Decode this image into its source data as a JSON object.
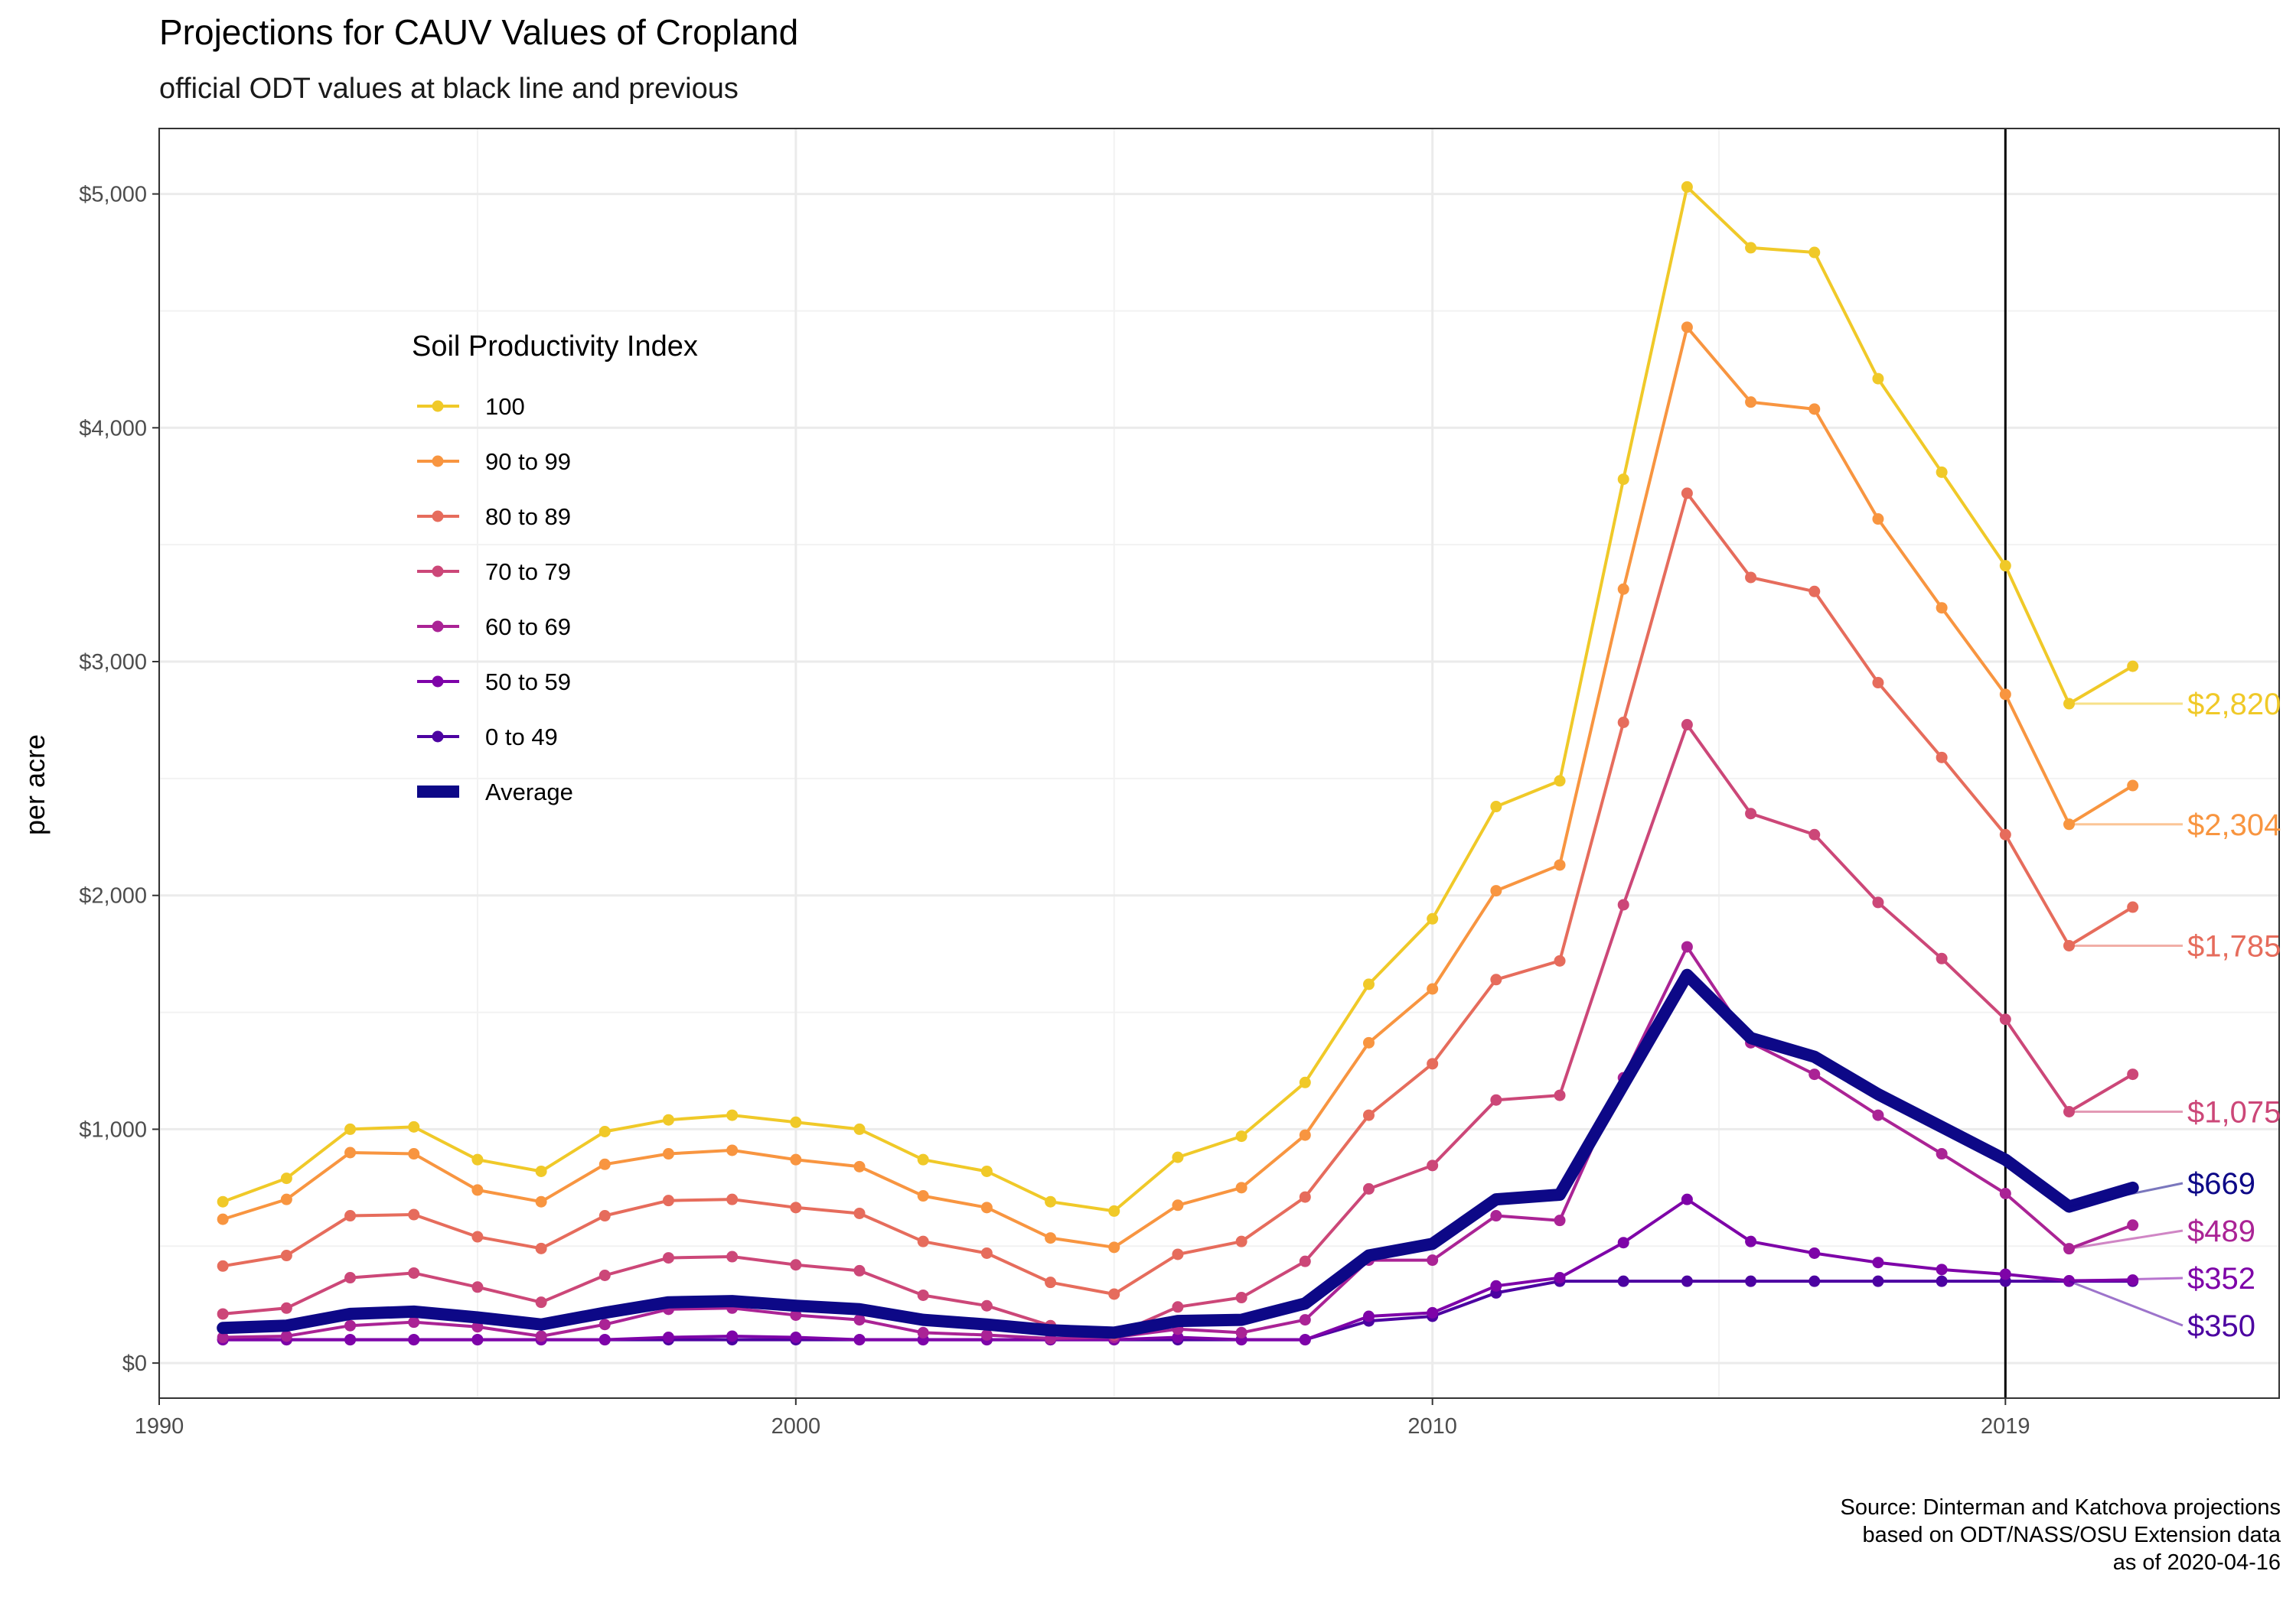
{
  "chart_data": {
    "type": "line",
    "title": "Projections for CAUV Values of Cropland",
    "subtitle": "official ODT values at black line and previous",
    "ylabel": "per acre",
    "xlabel": "",
    "caption": [
      "Source: Dinterman and Katchova projections",
      "based on ODT/NASS/OSU Extension data",
      "as of 2020-04-16"
    ],
    "xlim": [
      1990,
      2023.3
    ],
    "ylim": [
      -150,
      5280
    ],
    "x_ticks": [
      1990,
      2000,
      2010,
      2019
    ],
    "x_tick_labels": [
      "1990",
      "2000",
      "2010",
      "2019"
    ],
    "y_ticks": [
      0,
      1000,
      2000,
      3000,
      4000,
      5000
    ],
    "y_tick_labels": [
      "$0",
      "$1,000",
      "$2,000",
      "$3,000",
      "$4,000",
      "$5,000"
    ],
    "grid": true,
    "reference_line_x": 2019,
    "legend": {
      "title": "Soil Productivity Index",
      "position": "top-left inside"
    },
    "x": [
      1991,
      1992,
      1993,
      1994,
      1995,
      1996,
      1997,
      1998,
      1999,
      2000,
      2001,
      2002,
      2003,
      2004,
      2005,
      2006,
      2007,
      2008,
      2009,
      2010,
      2011,
      2012,
      2013,
      2014,
      2015,
      2016,
      2017,
      2018,
      2019,
      2020,
      2021
    ],
    "series": [
      {
        "name": "100",
        "color": "#F0C928",
        "bold": false,
        "values": [
          690,
          790,
          1000,
          1010,
          870,
          820,
          990,
          1040,
          1060,
          1030,
          1000,
          870,
          820,
          690,
          650,
          880,
          970,
          1200,
          1620,
          1900,
          2380,
          2490,
          3780,
          5030,
          4770,
          4750,
          4210,
          3810,
          3410,
          2820,
          2980
        ],
        "end_label": "$2,820"
      },
      {
        "name": "90 to 99",
        "color": "#F89540",
        "bold": false,
        "values": [
          615,
          700,
          900,
          895,
          740,
          690,
          850,
          895,
          910,
          870,
          840,
          715,
          665,
          535,
          495,
          675,
          750,
          975,
          1370,
          1600,
          2020,
          2130,
          3310,
          4430,
          4110,
          4080,
          3610,
          3230,
          2860,
          2304,
          2470
        ],
        "end_label": "$2,304"
      },
      {
        "name": "80 to 89",
        "color": "#E66C5C",
        "bold": false,
        "values": [
          415,
          460,
          630,
          635,
          540,
          490,
          630,
          695,
          700,
          665,
          640,
          520,
          470,
          345,
          295,
          465,
          520,
          710,
          1060,
          1280,
          1640,
          1720,
          2740,
          3720,
          3360,
          3300,
          2910,
          2590,
          2260,
          1785,
          1950
        ],
        "end_label": "$1,785"
      },
      {
        "name": "70 to 79",
        "color": "#CC4778",
        "bold": false,
        "values": [
          210,
          235,
          365,
          385,
          325,
          260,
          375,
          450,
          455,
          420,
          395,
          290,
          245,
          160,
          120,
          240,
          280,
          435,
          745,
          845,
          1125,
          1145,
          1960,
          2730,
          2350,
          2260,
          1970,
          1730,
          1470,
          1075,
          1235
        ],
        "end_label": "$1,075"
      },
      {
        "name": "60 to 69",
        "color": "#AA2395",
        "bold": false,
        "values": [
          110,
          115,
          160,
          175,
          155,
          115,
          165,
          230,
          235,
          205,
          185,
          130,
          120,
          105,
          110,
          145,
          130,
          185,
          440,
          440,
          630,
          610,
          1220,
          1780,
          1370,
          1235,
          1060,
          895,
          725,
          489,
          590
        ],
        "end_label": "$489"
      },
      {
        "name": "50 to 59",
        "color": "#7E03A8",
        "bold": false,
        "values": [
          100,
          100,
          100,
          100,
          100,
          100,
          100,
          110,
          115,
          110,
          100,
          100,
          100,
          100,
          100,
          110,
          100,
          100,
          200,
          215,
          330,
          365,
          515,
          700,
          520,
          470,
          430,
          400,
          380,
          352,
          355
        ],
        "end_label": "$352"
      },
      {
        "name": "0 to 49",
        "color": "#4C02A1",
        "bold": false,
        "values": [
          100,
          100,
          100,
          100,
          100,
          100,
          100,
          100,
          100,
          100,
          100,
          100,
          100,
          100,
          100,
          100,
          100,
          100,
          180,
          200,
          300,
          350,
          350,
          350,
          350,
          350,
          350,
          350,
          350,
          350,
          350
        ],
        "end_label": "$350"
      },
      {
        "name": "Average",
        "color": "#0D0887",
        "bold": true,
        "values": [
          150,
          160,
          210,
          220,
          195,
          165,
          215,
          260,
          265,
          245,
          230,
          185,
          165,
          140,
          130,
          180,
          185,
          255,
          460,
          510,
          700,
          720,
          1190,
          1660,
          1390,
          1310,
          1150,
          1010,
          870,
          669,
          750
        ],
        "end_label": "$669"
      }
    ]
  }
}
